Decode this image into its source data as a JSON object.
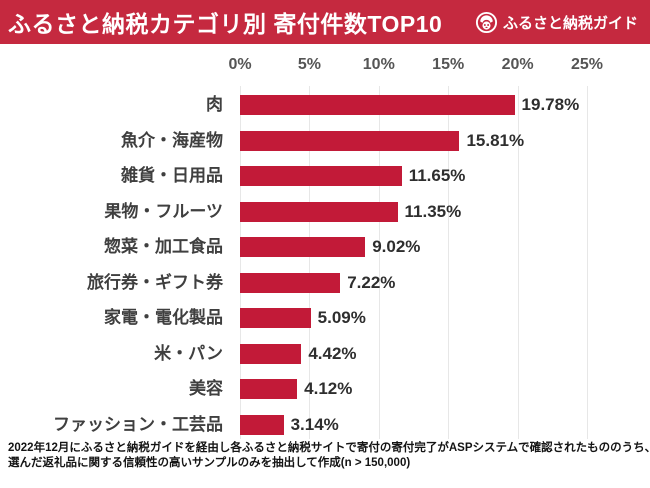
{
  "header": {
    "title": "ふるさと納税カテゴリ別 寄付件数TOP10",
    "bg_color": "#C5293F",
    "text_color": "#FFFFFF",
    "brand": {
      "name": "ふるさと納税ガイド",
      "icon": "guide-mascot-icon"
    }
  },
  "chart_data": {
    "type": "bar",
    "orientation": "horizontal",
    "title": "ふるさと納税カテゴリ別 寄付件数TOP10",
    "categories": [
      "肉",
      "魚介・海産物",
      "雑貨・日用品",
      "果物・フルーツ",
      "惣菜・加工食品",
      "旅行券・ギフト券",
      "家電・電化製品",
      "米・パン",
      "美容",
      "ファッション・工芸品"
    ],
    "values": [
      19.78,
      15.81,
      11.65,
      11.35,
      9.02,
      7.22,
      5.09,
      4.42,
      4.12,
      3.14
    ],
    "value_labels": [
      "19.78%",
      "15.81%",
      "11.65%",
      "11.35%",
      "9.02%",
      "7.22%",
      "5.09%",
      "4.42%",
      "4.12%",
      "3.14%"
    ],
    "x_ticks": [
      "0%",
      "5%",
      "10%",
      "15%",
      "20%",
      "25%"
    ],
    "xlim": [
      0,
      25
    ],
    "grid": true,
    "legend": "none",
    "bar_color": "#C21A38",
    "category_label_color": "#3F3F3F",
    "tick_label_color": "#555555"
  },
  "footnote": {
    "line1": "2022年12月にふるさと納税ガイドを経由し各ふるさと納税サイトで寄付の寄付完了がASPシステムで確認されたもののうち、",
    "line2": "選んだ返礼品に関する信頼性の高いサンプルのみを抽出して作成(n > 150,000)"
  }
}
